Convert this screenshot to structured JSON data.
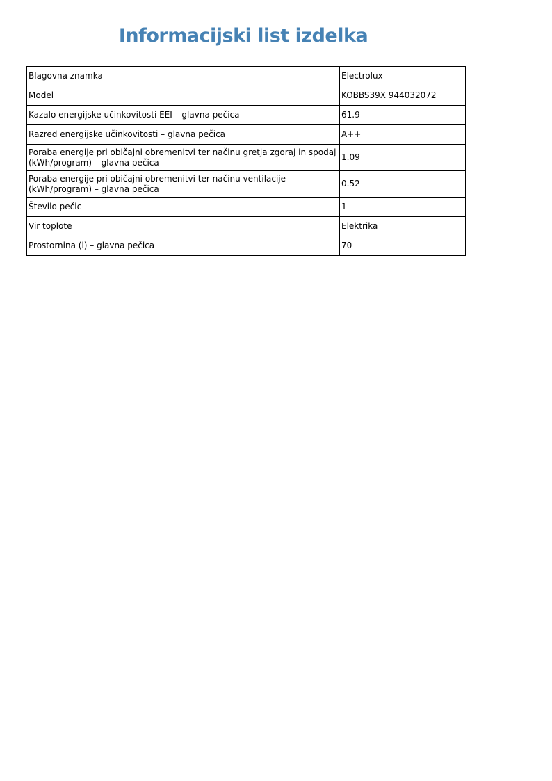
{
  "title": "Informacijski list izdelka",
  "rows": [
    {
      "label": "Blagovna znamka",
      "value": "Electrolux"
    },
    {
      "label": "Model",
      "value": "KOBBS39X 944032072"
    },
    {
      "label": "Kazalo energijske učinkovitosti EEI – glavna pečica",
      "value": "61.9"
    },
    {
      "label": "Razred energijske učinkovitosti – glavna pečica",
      "value": "A++"
    },
    {
      "label": "Poraba energije pri običajni obremenitvi ter načinu gretja zgoraj in spodaj (kWh/program) – glavna pečica",
      "value": "1.09"
    },
    {
      "label": "Poraba energije pri običajni obremenitvi ter načinu ventilacije (kWh/program) – glavna pečica",
      "value": "0.52"
    },
    {
      "label": "Število pečic",
      "value": "1"
    },
    {
      "label": "Vir toplote",
      "value": "Elektrika"
    },
    {
      "label": "Prostornina (l) – glavna pečica",
      "value": "70"
    }
  ]
}
